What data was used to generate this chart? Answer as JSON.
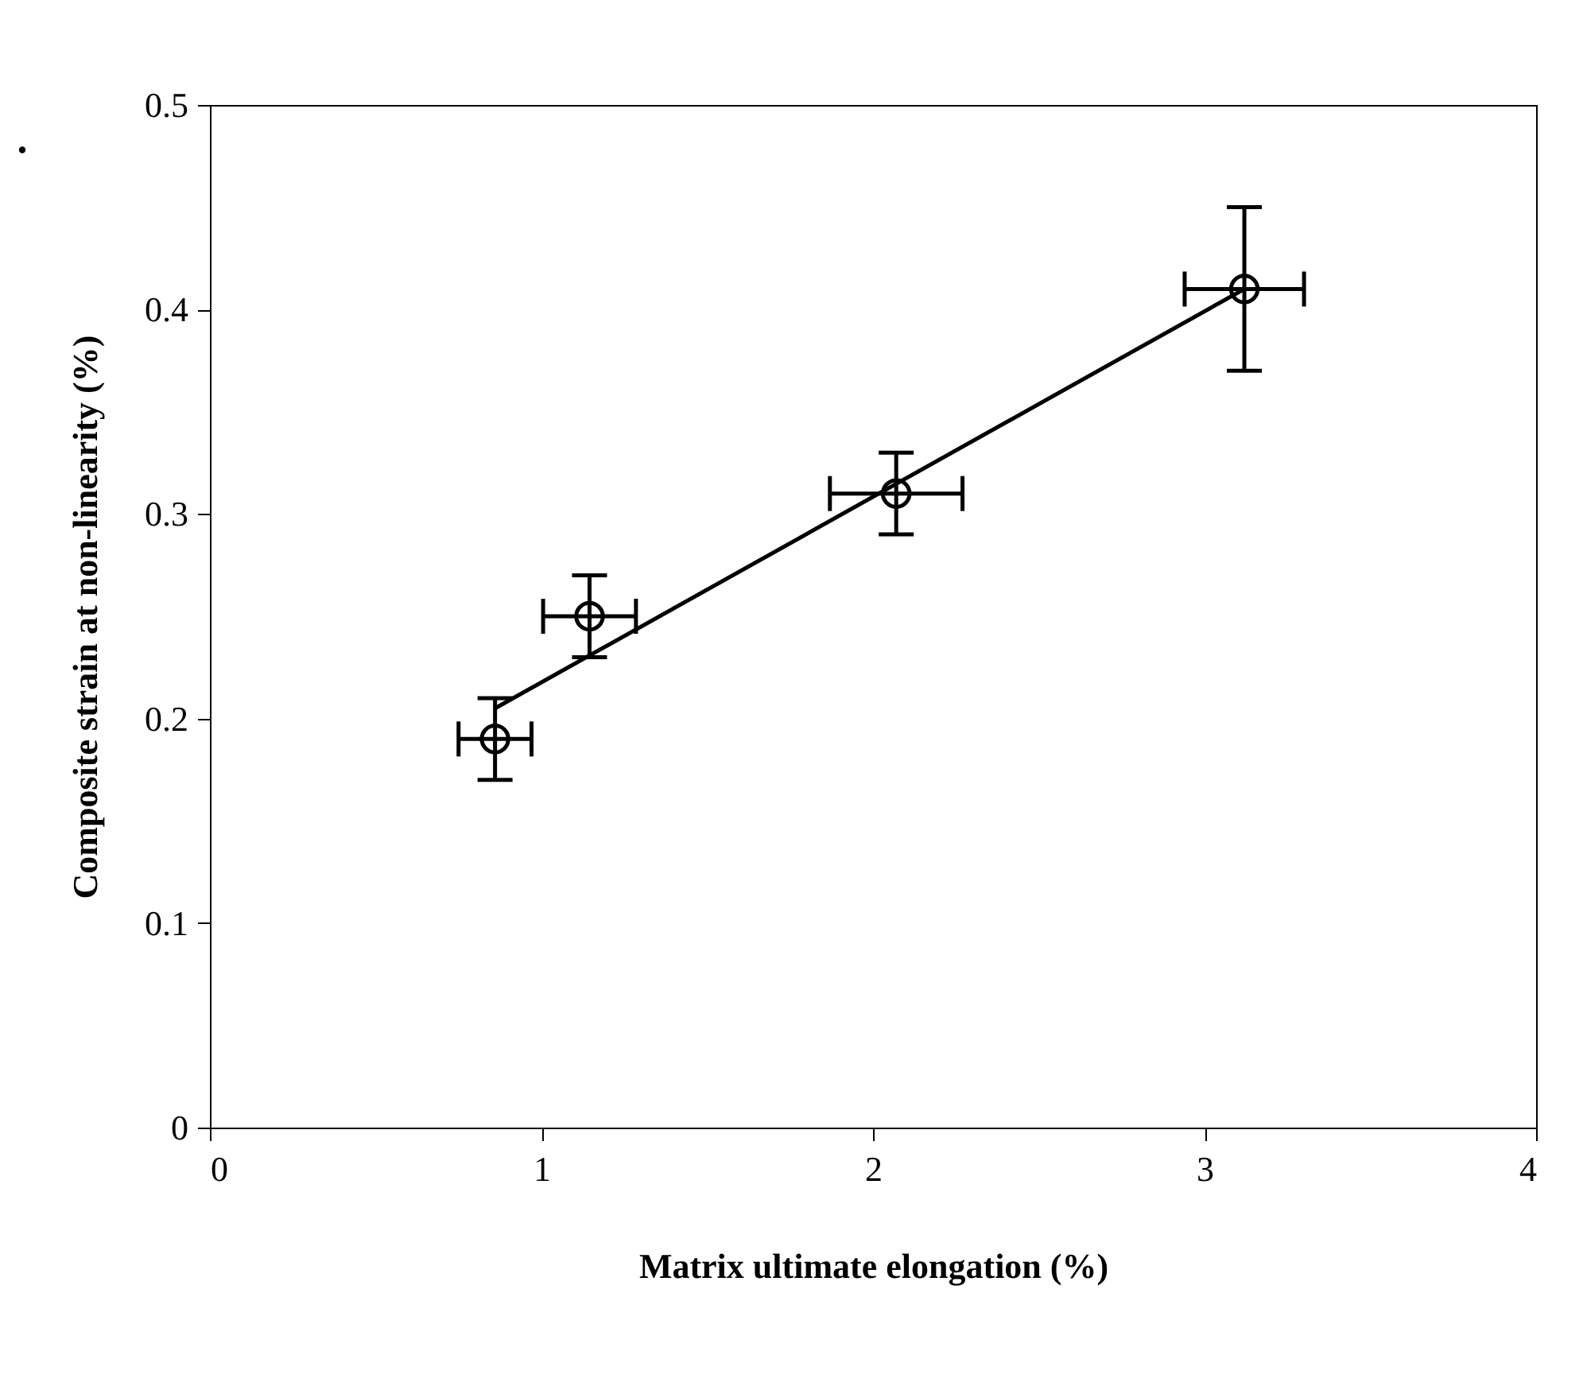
{
  "chart_data": {
    "type": "scatter",
    "xlabel": "Matrix ultimate elongation (%)",
    "ylabel": "Composite strain at non-linearity (%)",
    "annotations": [
      "."
    ],
    "xlim": [
      0,
      4
    ],
    "xticks": [
      0,
      1,
      2,
      3,
      4
    ],
    "ylim": [
      0,
      0.5
    ],
    "yticks": [
      0,
      0.1,
      0.2,
      0.3,
      0.4,
      0.5
    ],
    "grid": false,
    "series": [
      {
        "color": "#000000",
        "marker": "circle",
        "x": [
          0.86,
          1.145,
          2.07,
          3.12
        ],
        "values": [
          0.19,
          0.25,
          0.31,
          0.41
        ],
        "errors": [
          0.02,
          0.02,
          0.02,
          0.04
        ],
        "xerrors": [
          0.11,
          0.14,
          0.2,
          0.18
        ]
      },
      {
        "type": "line",
        "color": "#000000",
        "marker": "none",
        "line_style": "solid",
        "x": [
          0.86,
          3.12
        ],
        "values": [
          0.205,
          0.41
        ]
      }
    ]
  }
}
